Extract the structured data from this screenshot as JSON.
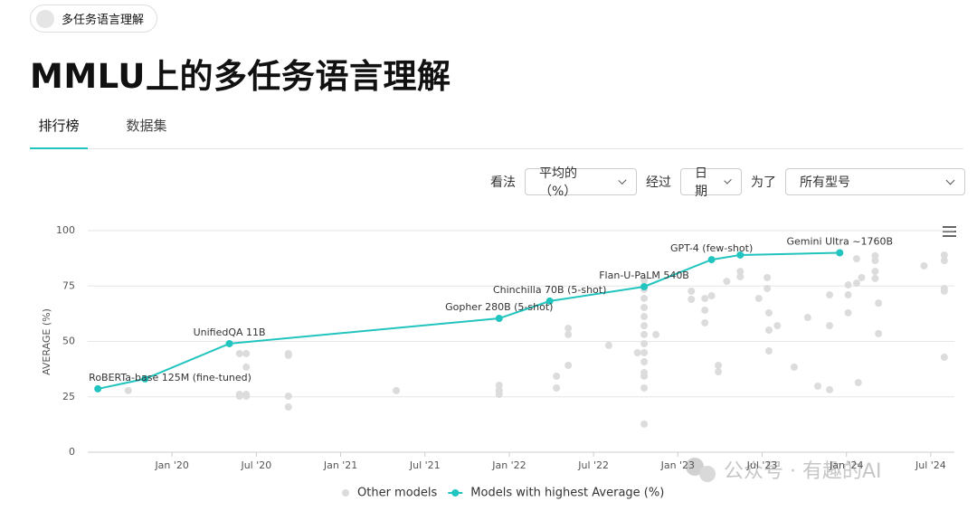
{
  "badge": "多任务语言理解",
  "title": "MMLU上的多任务语言理解",
  "tabs": [
    "排行榜",
    "数据集"
  ],
  "active_tab": 0,
  "filters": [
    {
      "label": "看法",
      "value": "平均的 （%）"
    },
    {
      "label": "经过",
      "value": "日期"
    },
    {
      "label": "为了",
      "value": "所有型号"
    }
  ],
  "watermark": "公众号 · 有趣的AI",
  "chart_data": {
    "type": "scatter",
    "ylabel": "AVERAGE (%)",
    "xlim": [
      2019.5,
      2024.64
    ],
    "ylim": [
      0,
      100
    ],
    "xticks": [
      {
        "value": 2020,
        "label": "Jan '20"
      },
      {
        "value": 2020.5,
        "label": "Jul '20"
      },
      {
        "value": 2021,
        "label": "Jan '21"
      },
      {
        "value": 2021.5,
        "label": "Jul '21"
      },
      {
        "value": 2022,
        "label": "Jan '22"
      },
      {
        "value": 2022.5,
        "label": "Jul '22"
      },
      {
        "value": 2023,
        "label": "Jan '23"
      },
      {
        "value": 2023.5,
        "label": "Jul '23"
      },
      {
        "value": 2024,
        "label": "Jan '24"
      },
      {
        "value": 2024.5,
        "label": "Jul '24"
      }
    ],
    "yticks": [
      0,
      25,
      50,
      75,
      100
    ],
    "grid": true,
    "series": [
      {
        "name": "Other models",
        "color": "#dcdcdc",
        "x": [
          2019.74,
          2020.4,
          2020.44,
          2020.44,
          2020.4,
          2020.4,
          2020.44,
          2020.44,
          2020.69,
          2020.69,
          2020.69,
          2020.69,
          2021.33,
          2021.94,
          2021.94,
          2021.94,
          2022.28,
          2022.28,
          2022.35,
          2022.35,
          2022.35,
          2022.59,
          2022.76,
          2022.8,
          2022.8,
          2022.8,
          2022.8,
          2022.8,
          2022.8,
          2022.8,
          2022.8,
          2022.8,
          2022.8,
          2022.8,
          2022.8,
          2022.8,
          2022.8,
          2022.87,
          2023.08,
          2023.08,
          2023.16,
          2023.16,
          2023.16,
          2023.2,
          2023.24,
          2023.24,
          2023.29,
          2023.37,
          2023.37,
          2023.48,
          2023.53,
          2023.53,
          2023.54,
          2023.54,
          2023.54,
          2023.59,
          2023.69,
          2023.77,
          2023.83,
          2023.9,
          2023.9,
          2023.9,
          2024.01,
          2024.01,
          2024.01,
          2024.07,
          2024.06,
          2024.06,
          2024.09,
          2024.17,
          2024.17,
          2024.17,
          2024.17,
          2024.19,
          2024.19,
          2024.46,
          2024.58,
          2024.58,
          2024.58,
          2024.58,
          2024.58
        ],
        "values": [
          27.8,
          44.5,
          44.5,
          38.4,
          26.1,
          25.3,
          26.1,
          25.3,
          44.5,
          43.7,
          25.3,
          20.4,
          27.8,
          30.2,
          26.1,
          27.8,
          34.3,
          29.0,
          55.9,
          53.1,
          39.2,
          48.2,
          44.9,
          77.6,
          73.5,
          69.4,
          65.3,
          61.2,
          57.1,
          53.1,
          49.0,
          44.9,
          40.8,
          35.9,
          34.3,
          29.0,
          12.7,
          53.1,
          72.7,
          69.0,
          69.4,
          64.1,
          58.4,
          70.6,
          39.2,
          36.3,
          77.1,
          81.6,
          79.2,
          69.4,
          78.8,
          73.9,
          62.9,
          55.1,
          45.7,
          57.1,
          38.4,
          60.8,
          29.8,
          71.0,
          57.1,
          28.2,
          75.5,
          71.0,
          62.9,
          31.4,
          87.3,
          76.3,
          78.8,
          88.6,
          86.5,
          81.6,
          78.4,
          67.3,
          53.5,
          84.1,
          89.0,
          86.5,
          73.9,
          72.7,
          42.9
        ]
      },
      {
        "name": "Models with highest Average (%)",
        "color": "#22c4bf",
        "x": [
          2019.56,
          2019.84,
          2020.34,
          2021.94,
          2022.24,
          2022.8,
          2023.2,
          2023.37,
          2023.96
        ],
        "values": [
          28.6,
          33.1,
          49.0,
          60.4,
          68.2,
          74.7,
          86.9,
          89.0,
          90.0
        ],
        "point_labels": [
          "RoBERTa-base 125M (fine-tuned)",
          null,
          "UnifiedQA 11B",
          "Gopher 280B (5-shot)",
          "Chinchilla 70B (5-shot)",
          "Flan-U-PaLM 540B",
          "GPT-4 (few-shot)",
          null,
          "Gemini Ultra ~1760B"
        ]
      }
    ]
  }
}
